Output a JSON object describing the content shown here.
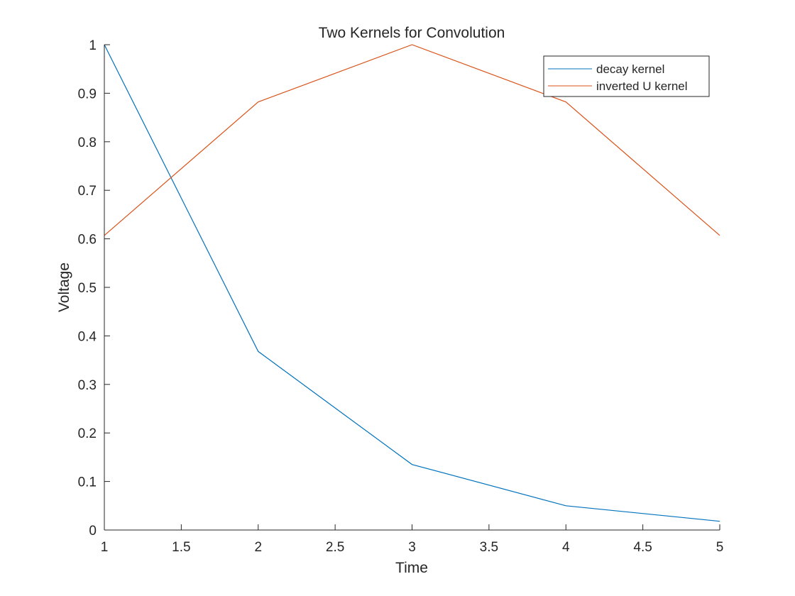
{
  "chart_data": {
    "type": "line",
    "title": "Two Kernels for Convolution",
    "xlabel": "Time",
    "ylabel": "Voltage",
    "xlim": [
      1,
      5
    ],
    "ylim": [
      0,
      1
    ],
    "xticks": [
      1,
      1.5,
      2,
      2.5,
      3,
      3.5,
      4,
      4.5,
      5
    ],
    "xtick_labels": [
      "1",
      "1.5",
      "2",
      "2.5",
      "3",
      "3.5",
      "4",
      "4.5",
      "5"
    ],
    "yticks": [
      0,
      0.1,
      0.2,
      0.3,
      0.4,
      0.5,
      0.6,
      0.7,
      0.8,
      0.9,
      1
    ],
    "ytick_labels": [
      "0",
      "0.1",
      "0.2",
      "0.3",
      "0.4",
      "0.5",
      "0.6",
      "0.7",
      "0.8",
      "0.9",
      "1"
    ],
    "grid": false,
    "legend_position": "top-right",
    "series": [
      {
        "name": "decay kernel",
        "color": "#0072BD",
        "x": [
          1,
          2,
          3,
          4,
          5
        ],
        "y": [
          1,
          0.368,
          0.135,
          0.05,
          0.018
        ]
      },
      {
        "name": "inverted U kernel",
        "color": "#D95319",
        "x": [
          1,
          2,
          3,
          4,
          5
        ],
        "y": [
          0.607,
          0.882,
          1,
          0.882,
          0.607
        ]
      }
    ]
  }
}
